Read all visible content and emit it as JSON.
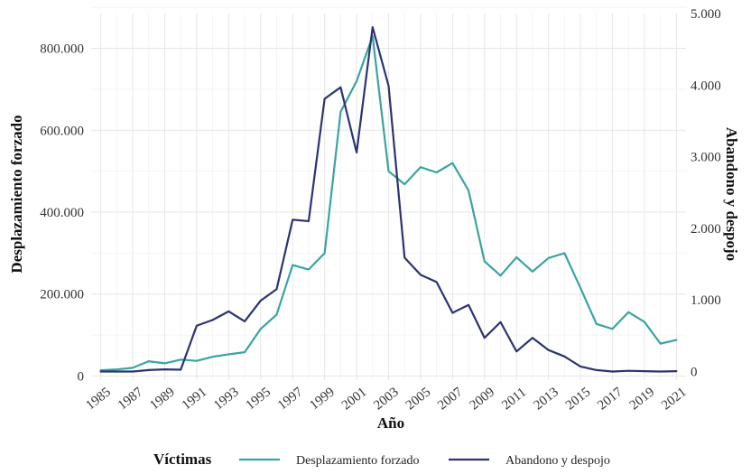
{
  "chart_data": {
    "type": "line",
    "title": "",
    "xlabel": "Año",
    "ylabel_left": "Desplazamiento forzado",
    "ylabel_right": "Abandono y despojo",
    "legend_title": "Víctimas",
    "legend_position": "bottom",
    "grid": true,
    "x": [
      1985,
      1986,
      1987,
      1988,
      1989,
      1990,
      1991,
      1992,
      1993,
      1994,
      1995,
      1996,
      1997,
      1998,
      1999,
      2000,
      2001,
      2002,
      2003,
      2004,
      2005,
      2006,
      2007,
      2008,
      2009,
      2010,
      2011,
      2012,
      2013,
      2014,
      2015,
      2016,
      2017,
      2018,
      2019,
      2020,
      2021
    ],
    "x_tick_values": [
      1985,
      1987,
      1989,
      1991,
      1993,
      1995,
      1997,
      1999,
      2001,
      2003,
      2005,
      2007,
      2009,
      2011,
      2013,
      2015,
      2017,
      2019,
      2021
    ],
    "x_tick_labels": [
      "1985",
      "1987",
      "1989",
      "1991",
      "1993",
      "1995",
      "1997",
      "1999",
      "2001",
      "2003",
      "2005",
      "2007",
      "2009",
      "2011",
      "2013",
      "2015",
      "2017",
      "2019",
      "2021"
    ],
    "xlim": [
      1984.4,
      2021.6
    ],
    "y_left_ticks": [
      0,
      200000,
      400000,
      600000,
      800000
    ],
    "y_left_tick_labels": [
      "0",
      "200.000",
      "400.000",
      "600.000",
      "800.000"
    ],
    "y_left_lim": [
      -10000,
      885000
    ],
    "y_right_ticks": [
      0,
      1000,
      2000,
      3000,
      4000,
      5000
    ],
    "y_right_tick_labels": [
      "0",
      "1.000",
      "2.000",
      "3.000",
      "4.000",
      "5.000"
    ],
    "y_right_lim": [
      -120,
      5000
    ],
    "series": [
      {
        "name": "Desplazamiento forzado",
        "axis": "left",
        "color": "#3aa3a3",
        "values": [
          14000,
          16000,
          20000,
          36000,
          31000,
          40000,
          37000,
          47000,
          53000,
          58000,
          115000,
          150000,
          271000,
          260000,
          300000,
          645000,
          720000,
          830000,
          500000,
          468000,
          510000,
          497000,
          520000,
          453000,
          280000,
          245000,
          290000,
          255000,
          288000,
          300000,
          215000,
          127000,
          115000,
          156000,
          132000,
          79000,
          88000
        ]
      },
      {
        "name": "Abandono y despojo",
        "axis": "right",
        "color": "#2b3472",
        "values": [
          0,
          0,
          0,
          20,
          30,
          25,
          640,
          720,
          840,
          700,
          990,
          1150,
          2120,
          2100,
          3810,
          3970,
          3060,
          4810,
          3990,
          1590,
          1350,
          1250,
          820,
          930,
          470,
          690,
          280,
          470,
          300,
          210,
          70,
          20,
          0,
          10,
          5,
          0,
          5
        ]
      }
    ]
  }
}
